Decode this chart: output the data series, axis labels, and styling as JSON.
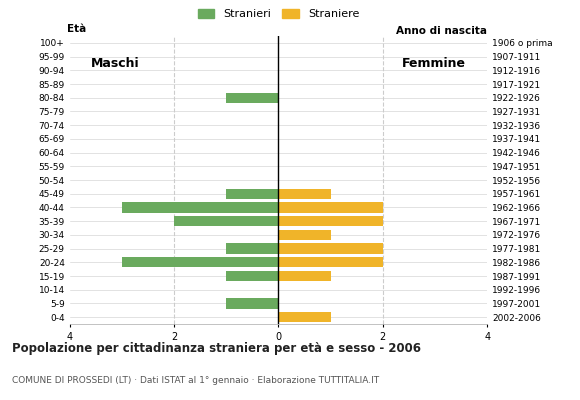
{
  "age_groups": [
    "100+",
    "95-99",
    "90-94",
    "85-89",
    "80-84",
    "75-79",
    "70-74",
    "65-69",
    "60-64",
    "55-59",
    "50-54",
    "45-49",
    "40-44",
    "35-39",
    "30-34",
    "25-29",
    "20-24",
    "15-19",
    "10-14",
    "5-9",
    "0-4"
  ],
  "birth_years": [
    "1906 o prima",
    "1907-1911",
    "1912-1916",
    "1917-1921",
    "1922-1926",
    "1927-1931",
    "1932-1936",
    "1937-1941",
    "1942-1946",
    "1947-1951",
    "1952-1956",
    "1957-1961",
    "1962-1966",
    "1967-1971",
    "1972-1976",
    "1977-1981",
    "1982-1986",
    "1987-1991",
    "1992-1996",
    "1997-2001",
    "2002-2006"
  ],
  "males": [
    0,
    0,
    0,
    0,
    1,
    0,
    0,
    0,
    0,
    0,
    0,
    1,
    3,
    2,
    0,
    1,
    3,
    1,
    0,
    1,
    0
  ],
  "females": [
    0,
    0,
    0,
    0,
    0,
    0,
    0,
    0,
    0,
    0,
    0,
    1,
    2,
    2,
    1,
    2,
    2,
    1,
    0,
    0,
    1
  ],
  "male_color": "#6aaa5e",
  "female_color": "#f0b429",
  "title": "Popolazione per cittadinanza straniera per età e sesso - 2006",
  "subtitle": "COMUNE DI PROSSEDI (LT) · Dati ISTAT al 1° gennaio · Elaborazione TUTTITALIA.IT",
  "legend_male": "Stranieri",
  "legend_female": "Straniere",
  "label_eta": "Età",
  "label_anno": "Anno di nascita",
  "label_maschi": "Maschi",
  "label_femmine": "Femmine",
  "xlim": 4,
  "background_color": "#ffffff",
  "grid_color": "#cccccc",
  "bar_height": 0.75
}
